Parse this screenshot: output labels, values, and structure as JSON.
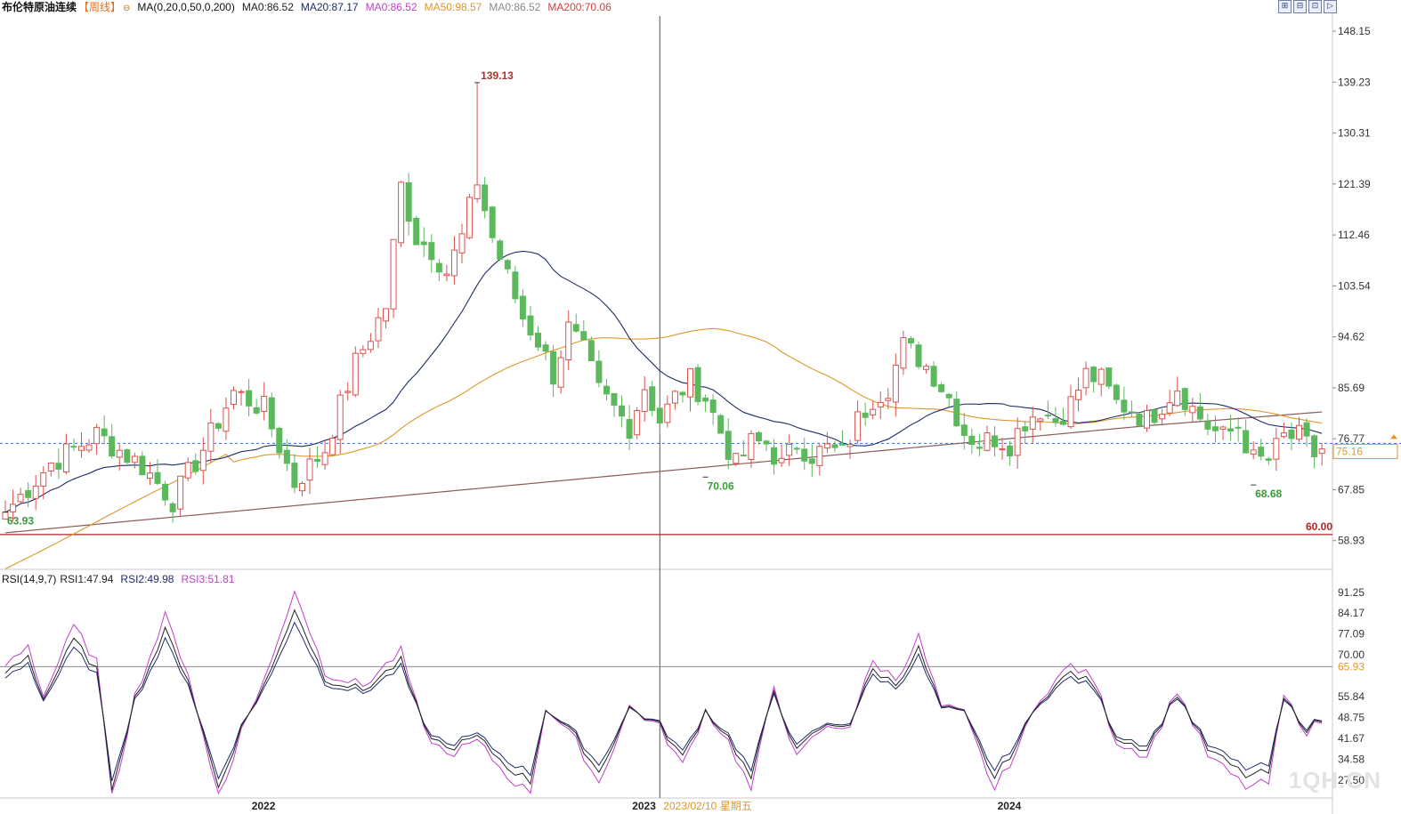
{
  "header": {
    "title": "布伦特原油连续",
    "period": "【周线】",
    "ma_spec": "MA(0,20,0,50,0,200)",
    "ma_values": [
      {
        "label": "MA0:86.52",
        "color": "#222222"
      },
      {
        "label": "MA20:87.17",
        "color": "#1d2c6b"
      },
      {
        "label": "MA0:86.52",
        "color": "#c040c8"
      },
      {
        "label": "MA50:98.57",
        "color": "#e0962a"
      },
      {
        "label": "MA0:86.52",
        "color": "#888888"
      },
      {
        "label": "MA200:70.06",
        "color": "#d04040"
      }
    ]
  },
  "toolbar": {
    "buttons": [
      "⊞",
      "⊟",
      "⊡",
      "▷"
    ]
  },
  "rsi_header": {
    "spec": "RSI(14,9,7)",
    "values": [
      {
        "label": "RSI1:47.94",
        "color": "#222222"
      },
      {
        "label": "RSI2:49.98",
        "color": "#1d2c6b"
      },
      {
        "label": "RSI3:51.81",
        "color": "#c040c8"
      }
    ]
  },
  "watermark": "1QH.CN",
  "chart_data": [
    {
      "type": "candlestick",
      "title": "布伦特原油连续 周线",
      "y_ticks": [
        "148.15",
        "139.23",
        "130.31",
        "121.39",
        "112.46",
        "103.54",
        "94.62",
        "85.69",
        "76.77",
        "67.85",
        "58.93"
      ],
      "ylim": [
        53.9,
        150.8
      ],
      "x_ticks": [
        "2022",
        "2023",
        "2024"
      ],
      "crosshair_label": "2023/02/10 星期五",
      "current_price": "75.16",
      "support_line": {
        "value": 60.0,
        "label": "60.00"
      },
      "annotations": [
        {
          "label": "139.13",
          "value": 139.13
        },
        {
          "label": "63.93",
          "value": 63.93
        },
        {
          "label": "70.06",
          "value": 70.06
        },
        {
          "label": "68.68",
          "value": 68.68
        }
      ],
      "colors": {
        "up": "#d9534f",
        "down": "#5cb85c",
        "ma20": "#1d2c6b",
        "ma50": "#e0962a",
        "ma200": "#8b5a5a",
        "support": "#b22222",
        "price_line": "#2f6fd6"
      },
      "close_anchors": [
        [
          0,
          63.9
        ],
        [
          6,
          72.5
        ],
        [
          12,
          77.5
        ],
        [
          18,
          72
        ],
        [
          22,
          66
        ],
        [
          26,
          75
        ],
        [
          30,
          85
        ],
        [
          34,
          82
        ],
        [
          38,
          69
        ],
        [
          42,
          75
        ],
        [
          46,
          90
        ],
        [
          50,
          100
        ],
        [
          52,
          121
        ],
        [
          54,
          112
        ],
        [
          56,
          110
        ],
        [
          58,
          106
        ],
        [
          60,
          112
        ],
        [
          62,
          122
        ],
        [
          64,
          112
        ],
        [
          66,
          105
        ],
        [
          68,
          98
        ],
        [
          70,
          94
        ],
        [
          72,
          88
        ],
        [
          74,
          96
        ],
        [
          76,
          92
        ],
        [
          78,
          85
        ],
        [
          80,
          82
        ],
        [
          82,
          79
        ],
        [
          84,
          86
        ],
        [
          86,
          80
        ],
        [
          88,
          84
        ],
        [
          90,
          87
        ],
        [
          92,
          84
        ],
        [
          94,
          78
        ],
        [
          96,
          72
        ],
        [
          98,
          76
        ],
        [
          100,
          76
        ],
        [
          102,
          72
        ],
        [
          104,
          76
        ],
        [
          106,
          74
        ],
        [
          108,
          75
        ],
        [
          110,
          74
        ],
        [
          112,
          80
        ],
        [
          114,
          84
        ],
        [
          116,
          86
        ],
        [
          118,
          93
        ],
        [
          120,
          91
        ],
        [
          122,
          88
        ],
        [
          124,
          84
        ],
        [
          126,
          78
        ],
        [
          128,
          76
        ],
        [
          130,
          77
        ],
        [
          132,
          76
        ],
        [
          134,
          80
        ],
        [
          136,
          82
        ],
        [
          138,
          80
        ],
        [
          140,
          83
        ],
        [
          142,
          88
        ],
        [
          144,
          87
        ],
        [
          146,
          83
        ],
        [
          148,
          82
        ],
        [
          150,
          80
        ],
        [
          152,
          83
        ],
        [
          154,
          86
        ],
        [
          156,
          82
        ],
        [
          158,
          79
        ],
        [
          160,
          77
        ],
        [
          162,
          79
        ],
        [
          164,
          73
        ],
        [
          166,
          73
        ],
        [
          168,
          77
        ],
        [
          170,
          77
        ],
        [
          172,
          74
        ],
        [
          173,
          75
        ]
      ],
      "rsi": {
        "y_ticks": [
          "91.25",
          "84.17",
          "77.09",
          "70.00",
          "65.93",
          "55.84",
          "48.75",
          "41.67",
          "34.58",
          "27.50"
        ],
        "ylim": [
          22,
          93
        ],
        "highlight": "65.93",
        "reference_line": 66,
        "anchors": [
          [
            0,
            64
          ],
          [
            3,
            70
          ],
          [
            5,
            55
          ],
          [
            9,
            75
          ],
          [
            12,
            65
          ],
          [
            14,
            25
          ],
          [
            17,
            55
          ],
          [
            21,
            78
          ],
          [
            24,
            62
          ],
          [
            28,
            25
          ],
          [
            31,
            45
          ],
          [
            35,
            65
          ],
          [
            38,
            86
          ],
          [
            42,
            62
          ],
          [
            47,
            58
          ],
          [
            52,
            68
          ],
          [
            55,
            45
          ],
          [
            58,
            38
          ],
          [
            62,
            42
          ],
          [
            66,
            32
          ],
          [
            69,
            27
          ],
          [
            71,
            52
          ],
          [
            75,
            42
          ],
          [
            78,
            30
          ],
          [
            82,
            52
          ],
          [
            86,
            46
          ],
          [
            89,
            35
          ],
          [
            92,
            51
          ],
          [
            95,
            42
          ],
          [
            98,
            28
          ],
          [
            101,
            58
          ],
          [
            104,
            37
          ],
          [
            107,
            45
          ],
          [
            111,
            47
          ],
          [
            114,
            65
          ],
          [
            117,
            60
          ],
          [
            120,
            72
          ],
          [
            123,
            52
          ],
          [
            126,
            50
          ],
          [
            130,
            28
          ],
          [
            133,
            40
          ],
          [
            136,
            55
          ],
          [
            140,
            64
          ],
          [
            143,
            60
          ],
          [
            146,
            42
          ],
          [
            150,
            38
          ],
          [
            154,
            57
          ],
          [
            158,
            38
          ],
          [
            163,
            29
          ],
          [
            166,
            30
          ],
          [
            168,
            55
          ],
          [
            171,
            45
          ],
          [
            173,
            48
          ]
        ]
      }
    }
  ]
}
